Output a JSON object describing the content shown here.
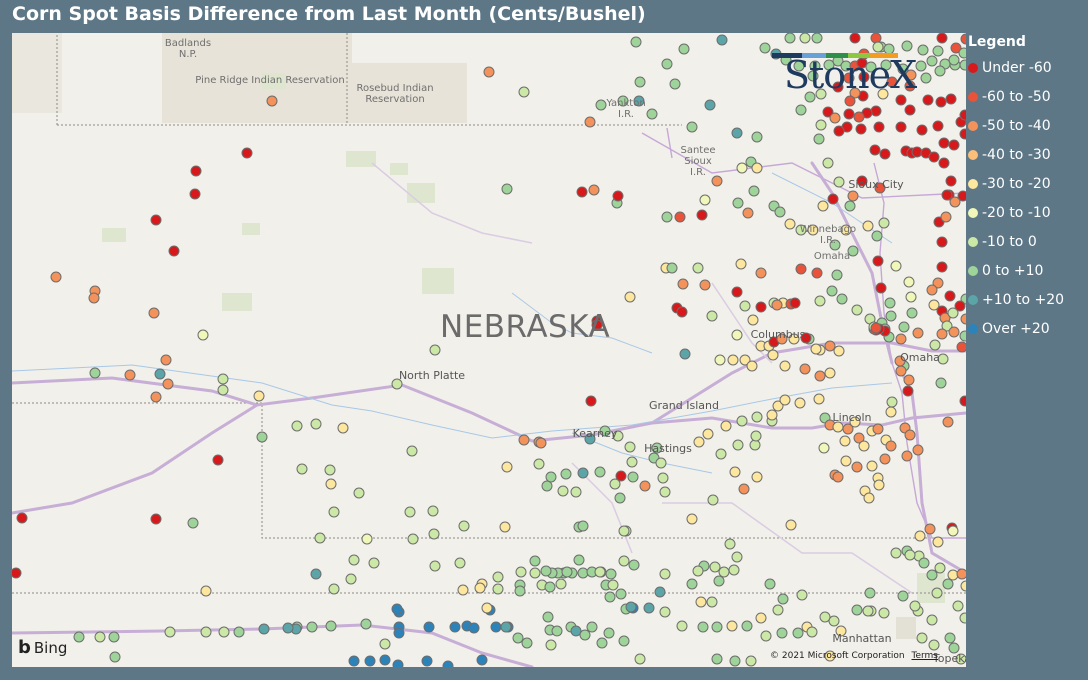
{
  "title": "Corn Spot Basis Difference from Last Month (Cents/Bushel)",
  "map": {
    "state_label": "NEBRASKA",
    "labels": [
      {
        "text": "Badlands\nN.P.",
        "cls": "maplabel"
      },
      {
        "text": "Pine Ridge Indian Reservation",
        "cls": "maplabel"
      },
      {
        "text": "Rosebud Indian\nReservation",
        "cls": "maplabel"
      },
      {
        "text": "Yankton\nI.R.",
        "cls": "maplabel"
      },
      {
        "text": "Santee\nSioux\nI.R.",
        "cls": "maplabel"
      },
      {
        "text": "Sioux City",
        "cls": "maplabel city"
      },
      {
        "text": "Winnebago\nI.R.",
        "cls": "maplabel"
      },
      {
        "text": "Omaha",
        "cls": "maplabel"
      },
      {
        "text": "Columbus",
        "cls": "maplabel city"
      },
      {
        "text": "Omaha",
        "cls": "maplabel city"
      },
      {
        "text": "North Platte",
        "cls": "maplabel city"
      },
      {
        "text": "Grand Island",
        "cls": "maplabel city"
      },
      {
        "text": "Kearney",
        "cls": "maplabel city"
      },
      {
        "text": "Hastings",
        "cls": "maplabel city"
      },
      {
        "text": "Lincoln",
        "cls": "maplabel city"
      },
      {
        "text": "Manhattan",
        "cls": "maplabel city"
      },
      {
        "text": "Topeka",
        "cls": "maplabel city"
      }
    ],
    "logo_text": "StoneX",
    "bing_text": "Bing",
    "copyright": "© 2021 Microsoft Corporation",
    "terms": "Terms"
  },
  "legend": {
    "title": "Legend",
    "items": [
      {
        "label": "Under -60",
        "color": "#d7191c"
      },
      {
        "label": "-60 to -50",
        "color": "#e8533a"
      },
      {
        "label": "-50 to -40",
        "color": "#f3925a"
      },
      {
        "label": "-40 to -30",
        "color": "#fbbf79"
      },
      {
        "label": "-30 to -20",
        "color": "#fde79f"
      },
      {
        "label": "-20 to -10",
        "color": "#f1f6b9"
      },
      {
        "label": "-10 to 0",
        "color": "#cce8a6"
      },
      {
        "label": "0 to +10",
        "color": "#9ed49a"
      },
      {
        "label": "+10 to +20",
        "color": "#5ba5a9"
      },
      {
        "label": "Over +20",
        "color": "#2b83ba"
      }
    ]
  },
  "chart_data": {
    "type": "scatter",
    "title": "Corn Spot Basis Difference from Last Month (Cents/Bushel)",
    "legend_position": "right",
    "categories": [
      "Under -60",
      "-60 to -50",
      "-50 to -40",
      "-40 to -30",
      "-30 to -20",
      "-20 to -10",
      "-10 to 0",
      "0 to +10",
      "+10 to +20",
      "Over +20"
    ]
  }
}
